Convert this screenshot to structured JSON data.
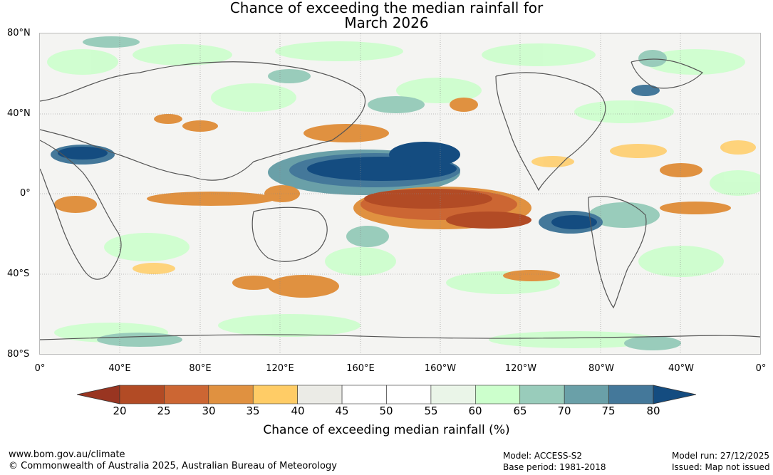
{
  "title": {
    "line1": "Chance of exceeding the median rainfall for",
    "line2": "March 2026"
  },
  "map": {
    "lat_labels": [
      "80°N",
      "40°N",
      "0°",
      "40°S",
      "80°S"
    ],
    "lon_labels": [
      "0°",
      "40°E",
      "80°E",
      "120°E",
      "160°E",
      "160°W",
      "120°W",
      "80°W",
      "40°W",
      "0°"
    ]
  },
  "colorbar": {
    "ticks": [
      "20",
      "25",
      "30",
      "35",
      "40",
      "45",
      "50",
      "55",
      "60",
      "65",
      "70",
      "75",
      "80"
    ],
    "label": "Chance of exceeding median rainfall (%)",
    "colors": [
      "#993521",
      "#b24b25",
      "#cc6633",
      "#e09140",
      "#ffcc66",
      "#ebebe6",
      "#ffffff",
      "#ffffff",
      "#eaf5e8",
      "#ccffcc",
      "#99ccbb",
      "#6aa0a8",
      "#44789a",
      "#144c80"
    ]
  },
  "footer": {
    "website": "www.bom.gov.au/climate",
    "copyright": "© Commonwealth of Australia 2025, Australian Bureau of Meteorology",
    "model": "Model: ACCESS-S2",
    "base_period": "Base period: 1981-2018",
    "model_run": "Model run: 27/12/2025",
    "issued": "Issued: Map not issued"
  }
}
